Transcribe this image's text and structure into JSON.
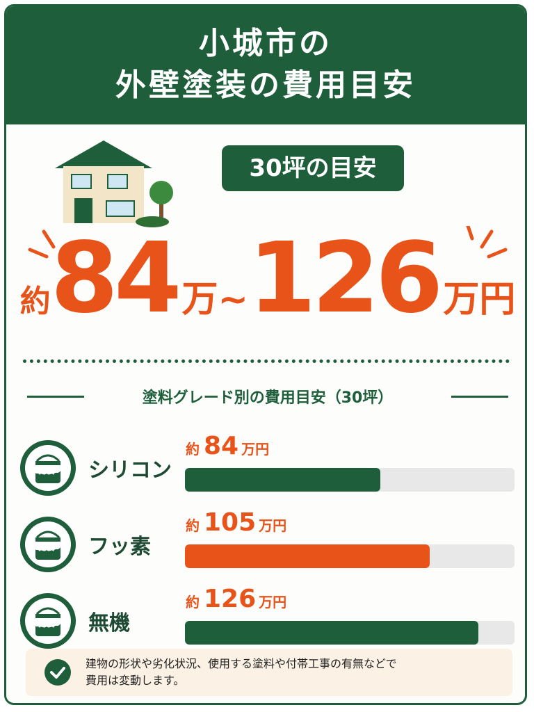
{
  "header": {
    "title_line1": "小城市の",
    "title_line2": "外壁塗装の費用目安"
  },
  "badge": "30坪の目安",
  "price": {
    "prefix": "約",
    "min": 84,
    "unit_min": "万",
    "separator": "~",
    "max": 126,
    "unit_max": "万円"
  },
  "grades": {
    "title": "塗料グレード別の費用目安（30坪）",
    "items": [
      {
        "name": "シリコン",
        "prefix": "約",
        "value": 84,
        "unit": "万円",
        "color": "#1e5e3b"
      },
      {
        "name": "フッ素",
        "prefix": "約",
        "value": 105,
        "unit": "万円",
        "color": "#e8531a"
      },
      {
        "name": "無機",
        "prefix": "約",
        "value": 126,
        "unit": "万円",
        "color": "#1e5e3b"
      }
    ]
  },
  "note": [
    "建物の形状や劣化状況、使用する塗料や付帯工事の有無などで",
    "費用は変動します。"
  ]
}
